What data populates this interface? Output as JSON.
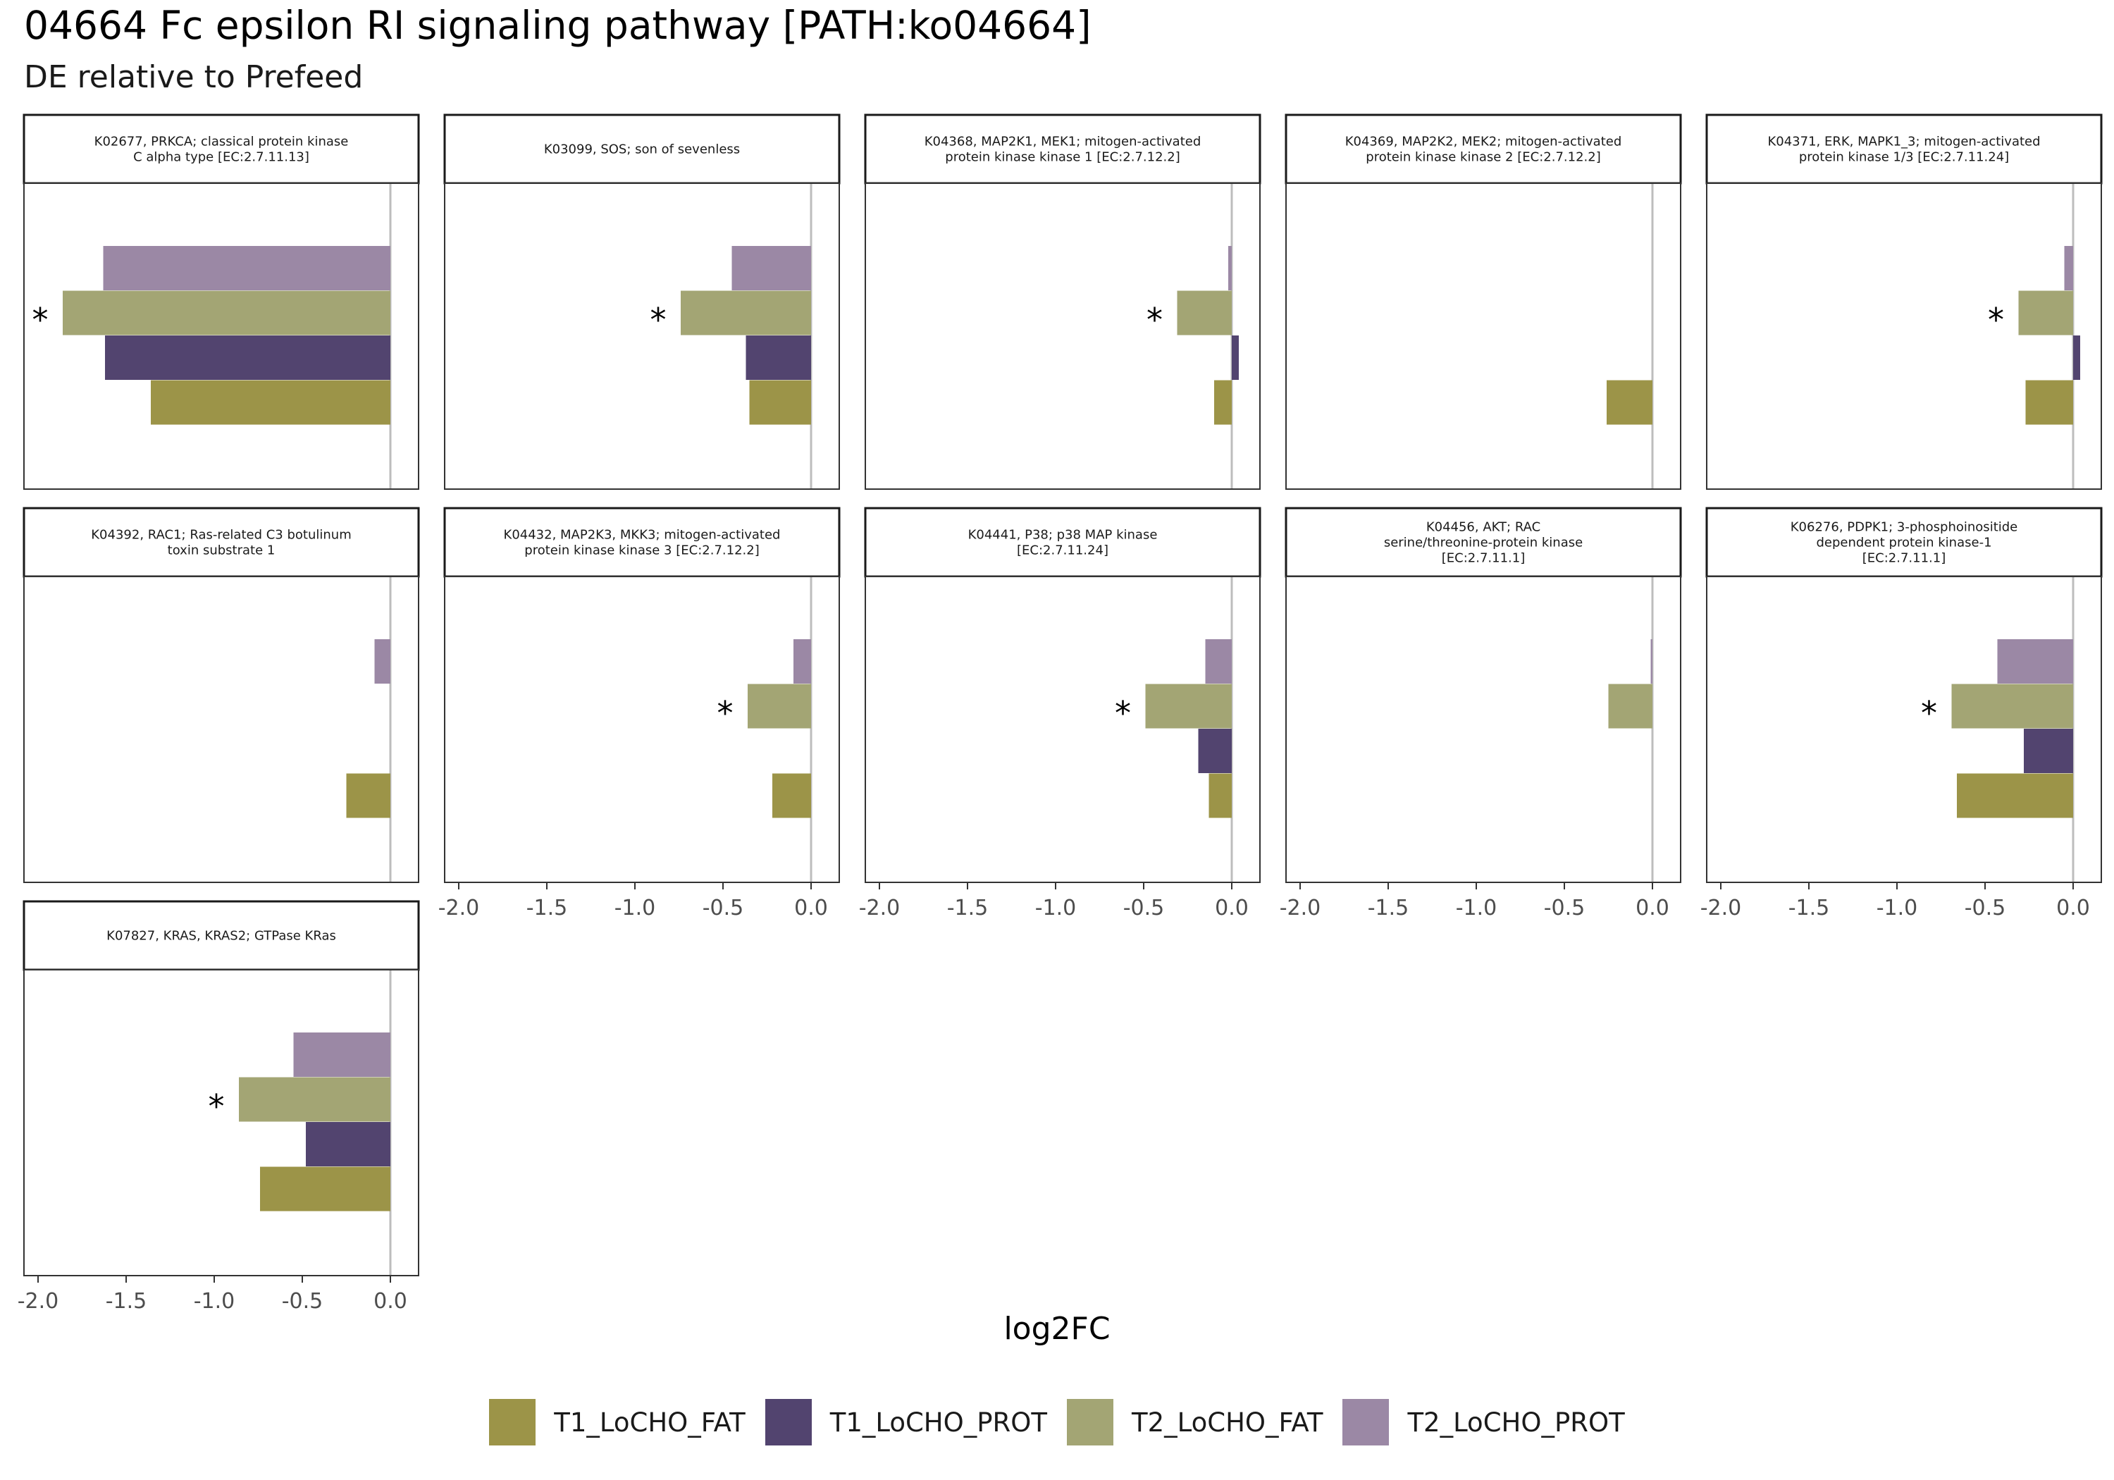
{
  "title": "04664 Fc epsilon RI signaling pathway [PATH:ko04664]",
  "subtitle": "DE relative to Prefeed",
  "legend": {
    "items": [
      {
        "label": "T1_LoCHO_FAT",
        "color": "#9c9448"
      },
      {
        "label": "T1_LoCHO_PROT",
        "color": "#52446f"
      },
      {
        "label": "T2_LoCHO_FAT",
        "color": "#a3a574"
      },
      {
        "label": "T2_LoCHO_PROT",
        "color": "#9b88a5"
      }
    ]
  },
  "chart_data": {
    "type": "bar",
    "orientation": "horizontal",
    "faceted": true,
    "xlabel": "log2FC",
    "xlim": [
      -2.08,
      0.16
    ],
    "xticks": [
      -2.0,
      -1.5,
      -1.0,
      -0.5,
      0.0
    ],
    "xtick_labels": [
      "-2.0",
      "-1.5",
      "-1.0",
      "-0.5",
      "0.0"
    ],
    "reference_line": 0,
    "grid": false,
    "legend_position": "bottom",
    "series": [
      "T1_LoCHO_FAT",
      "T1_LoCHO_PROT",
      "T2_LoCHO_FAT",
      "T2_LoCHO_PROT"
    ],
    "significance_marker": "*",
    "panels": [
      {
        "strip": [
          "K02677, PRKCA; classical protein kinase",
          "C alpha type [EC:2.7.11.13]"
        ],
        "values": {
          "T1_LoCHO_FAT": -1.36,
          "T1_LoCHO_PROT": -1.62,
          "T2_LoCHO_FAT": -1.86,
          "T2_LoCHO_PROT": -1.63
        },
        "significant": [
          "T2_LoCHO_FAT"
        ]
      },
      {
        "strip": [
          "K03099, SOS; son of sevenless"
        ],
        "values": {
          "T1_LoCHO_FAT": -0.35,
          "T1_LoCHO_PROT": -0.37,
          "T2_LoCHO_FAT": -0.74,
          "T2_LoCHO_PROT": -0.45
        },
        "significant": [
          "T2_LoCHO_FAT"
        ]
      },
      {
        "strip": [
          "K04368, MAP2K1, MEK1; mitogen-activated",
          "protein kinase kinase 1 [EC:2.7.12.2]"
        ],
        "values": {
          "T1_LoCHO_FAT": -0.1,
          "T1_LoCHO_PROT": 0.04,
          "T2_LoCHO_FAT": -0.31,
          "T2_LoCHO_PROT": -0.02
        },
        "significant": [
          "T2_LoCHO_FAT"
        ]
      },
      {
        "strip": [
          "K04369, MAP2K2, MEK2; mitogen-activated",
          "protein kinase kinase 2 [EC:2.7.12.2]"
        ],
        "values": {
          "T1_LoCHO_FAT": -0.26,
          "T1_LoCHO_PROT": null,
          "T2_LoCHO_FAT": null,
          "T2_LoCHO_PROT": null
        },
        "significant": []
      },
      {
        "strip": [
          "K04371, ERK, MAPK1_3; mitogen-activated",
          "protein kinase 1/3 [EC:2.7.11.24]"
        ],
        "values": {
          "T1_LoCHO_FAT": -0.27,
          "T1_LoCHO_PROT": 0.04,
          "T2_LoCHO_FAT": -0.31,
          "T2_LoCHO_PROT": -0.05
        },
        "significant": [
          "T2_LoCHO_FAT"
        ]
      },
      {
        "strip": [
          "K04392, RAC1; Ras-related C3 botulinum",
          "toxin substrate 1"
        ],
        "values": {
          "T1_LoCHO_FAT": -0.25,
          "T1_LoCHO_PROT": null,
          "T2_LoCHO_FAT": null,
          "T2_LoCHO_PROT": -0.09
        },
        "significant": []
      },
      {
        "strip": [
          "K04432, MAP2K3, MKK3; mitogen-activated",
          "protein kinase kinase 3 [EC:2.7.12.2]"
        ],
        "values": {
          "T1_LoCHO_FAT": -0.22,
          "T1_LoCHO_PROT": null,
          "T2_LoCHO_FAT": -0.36,
          "T2_LoCHO_PROT": -0.1
        },
        "significant": [
          "T2_LoCHO_FAT"
        ]
      },
      {
        "strip": [
          "K04441, P38; p38 MAP kinase",
          "[EC:2.7.11.24]"
        ],
        "values": {
          "T1_LoCHO_FAT": -0.13,
          "T1_LoCHO_PROT": -0.19,
          "T2_LoCHO_FAT": -0.49,
          "T2_LoCHO_PROT": -0.15
        },
        "significant": [
          "T2_LoCHO_FAT"
        ]
      },
      {
        "strip": [
          "K04456, AKT; RAC",
          "serine/threonine-protein kinase",
          "[EC:2.7.11.1]"
        ],
        "values": {
          "T1_LoCHO_FAT": null,
          "T1_LoCHO_PROT": null,
          "T2_LoCHO_FAT": -0.25,
          "T2_LoCHO_PROT": -0.01
        },
        "significant": []
      },
      {
        "strip": [
          "K06276, PDPK1; 3-phosphoinositide",
          "dependent protein kinase-1",
          "[EC:2.7.11.1]"
        ],
        "values": {
          "T1_LoCHO_FAT": -0.66,
          "T1_LoCHO_PROT": -0.28,
          "T2_LoCHO_FAT": -0.69,
          "T2_LoCHO_PROT": -0.43
        },
        "significant": [
          "T2_LoCHO_FAT"
        ]
      },
      {
        "strip": [
          "K07827, KRAS, KRAS2; GTPase KRas"
        ],
        "values": {
          "T1_LoCHO_FAT": -0.74,
          "T1_LoCHO_PROT": -0.48,
          "T2_LoCHO_FAT": -0.86,
          "T2_LoCHO_PROT": -0.55
        },
        "significant": [
          "T2_LoCHO_FAT"
        ]
      }
    ]
  }
}
